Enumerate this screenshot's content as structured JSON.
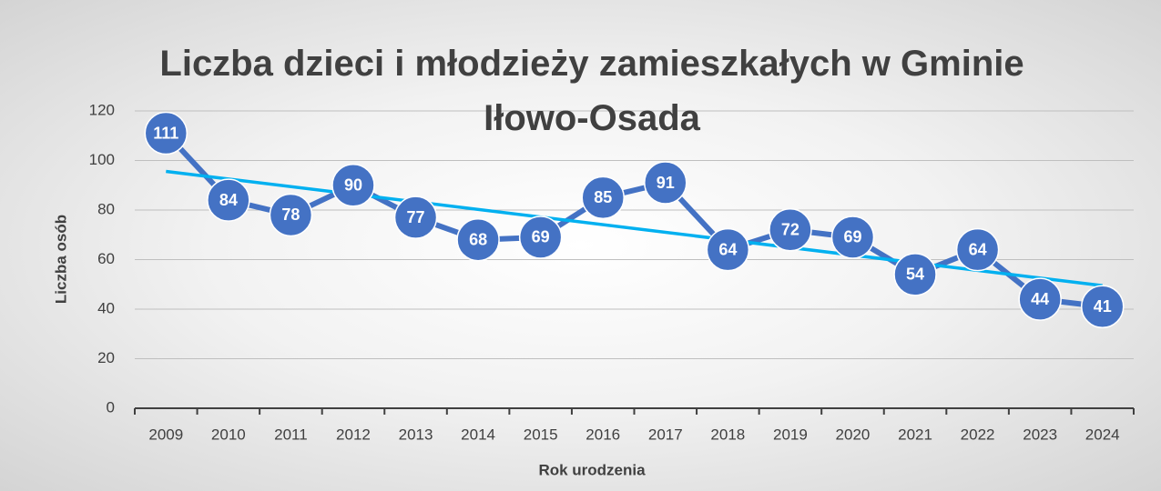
{
  "chart_data": {
    "type": "line",
    "title": "Liczba dzieci i młodzieży zamieszkałych w Gminie Iłowo-Osada",
    "x_label": "Rok urodzenia",
    "y_label": "Liczba osób",
    "categories": [
      "2009",
      "2010",
      "2011",
      "2012",
      "2013",
      "2014",
      "2015",
      "2016",
      "2017",
      "2018",
      "2019",
      "2020",
      "2021",
      "2022",
      "2023",
      "2024"
    ],
    "series": [
      {
        "name": "Liczba osób",
        "color": "#4472c4",
        "values": [
          111,
          84,
          78,
          90,
          77,
          68,
          69,
          85,
          91,
          64,
          72,
          69,
          54,
          64,
          44,
          41
        ]
      }
    ],
    "trendline": {
      "color": "#00b0f0",
      "values": [
        95.6,
        49.5
      ]
    },
    "ylim": [
      0,
      120
    ],
    "yticks": [
      0,
      20,
      40,
      60,
      80,
      100,
      120
    ],
    "grid": true
  }
}
